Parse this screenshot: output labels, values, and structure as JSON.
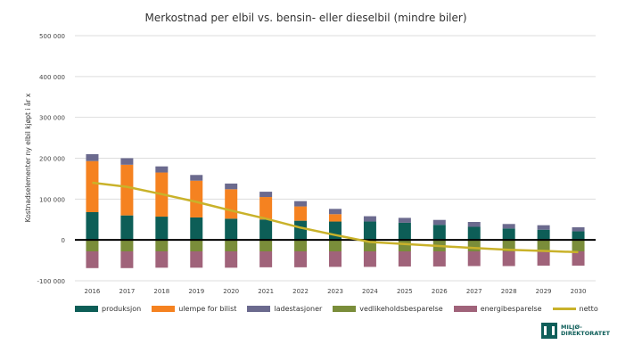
{
  "chart_data": {
    "type": "bar",
    "stacked": true,
    "title": "Merkostnad per elbil vs. bensin- eller dieselbil (mindre biler)",
    "ylabel": "Kostnadselementer ny elbil kjøpt i år x",
    "xlabel": "",
    "ylim": [
      -100000,
      500000
    ],
    "yticks": [
      -100000,
      0,
      100000,
      200000,
      300000,
      400000,
      500000
    ],
    "ytick_labels": [
      "-100 000",
      "0",
      "100 000",
      "200 000",
      "300 000",
      "400 000",
      "500 000"
    ],
    "grid": true,
    "legend_position": "bottom",
    "categories": [
      "2016",
      "2017",
      "2018",
      "2019",
      "2020",
      "2021",
      "2022",
      "2023",
      "2024",
      "2025",
      "2026",
      "2027",
      "2028",
      "2029",
      "2030"
    ],
    "series": [
      {
        "name": "produksjon",
        "color": "#0d5e57",
        "kind": "bar",
        "values": [
          68000,
          60000,
          57000,
          55000,
          52000,
          50000,
          47000,
          45000,
          45000,
          42000,
          37000,
          32000,
          28000,
          25000,
          21000
        ]
      },
      {
        "name": "ulempe for bilist",
        "color": "#f58220",
        "kind": "bar",
        "values": [
          125000,
          124000,
          108000,
          90000,
          72000,
          55000,
          35000,
          18000,
          0,
          0,
          0,
          0,
          0,
          0,
          0
        ]
      },
      {
        "name": "ladestasjoner",
        "color": "#6b6a8e",
        "kind": "bar",
        "values": [
          17000,
          16000,
          15000,
          14000,
          14000,
          13000,
          13000,
          13000,
          13000,
          12000,
          12000,
          12000,
          11000,
          11000,
          10000
        ]
      },
      {
        "name": "vedlikeholdsbesparelse",
        "color": "#7a8d3a",
        "kind": "bar",
        "values": [
          -28000,
          -28000,
          -28000,
          -28000,
          -28000,
          -28000,
          -28000,
          -28000,
          -28000,
          -28000,
          -28000,
          -28000,
          -28000,
          -28000,
          -28000
        ]
      },
      {
        "name": "energibesparelse",
        "color": "#a0637a",
        "kind": "bar",
        "values": [
          -41000,
          -41000,
          -40000,
          -40000,
          -40000,
          -39000,
          -39000,
          -38000,
          -38000,
          -37000,
          -37000,
          -36000,
          -36000,
          -35000,
          -35000
        ]
      },
      {
        "name": "netto",
        "color": "#c9b22a",
        "kind": "line",
        "values": [
          140000,
          130000,
          112000,
          93000,
          72000,
          52000,
          30000,
          12000,
          -5000,
          -10000,
          -15000,
          -20000,
          -24000,
          -27000,
          -30000
        ]
      }
    ]
  },
  "logo": {
    "line1": "MILJØ-",
    "line2": "DIREKTORATET"
  }
}
